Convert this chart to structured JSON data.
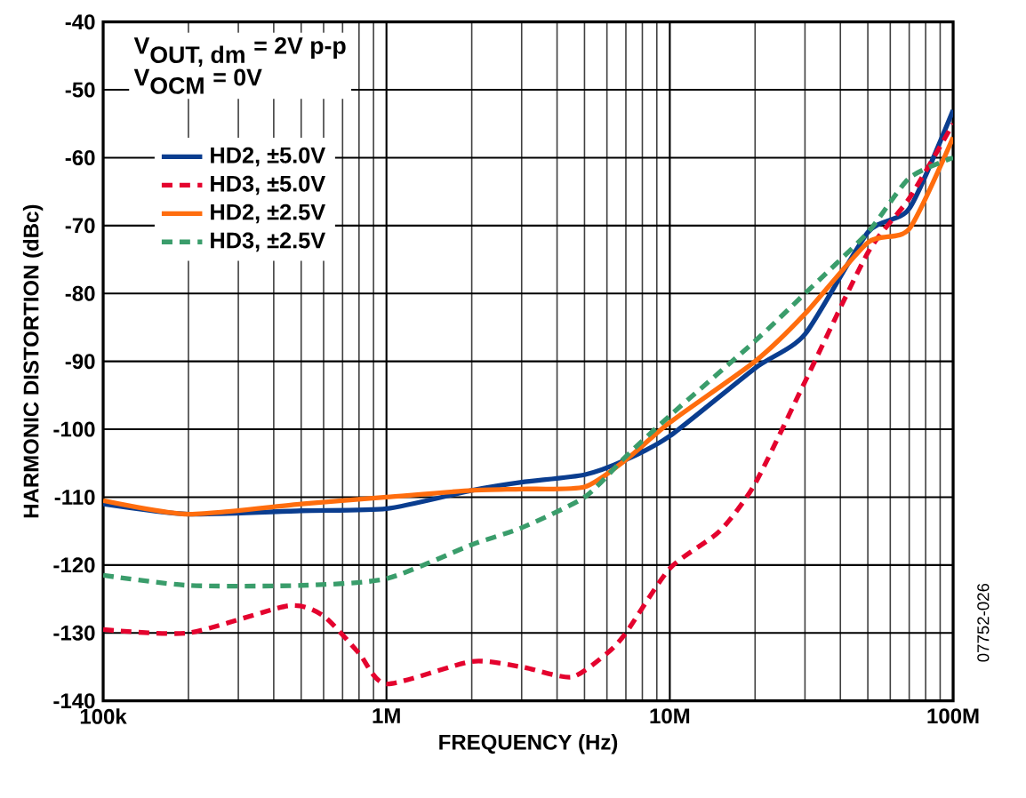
{
  "chart_data": {
    "type": "line",
    "xlabel": "FREQUENCY (Hz)",
    "ylabel": "HARMONIC DISTORTION (dBc)",
    "annotations": [
      "\\mbox{V}_{\\mbox{OUT, dm}}\\mbox{ = 2V p-p}",
      "\\mbox{V}_{\\mbox{OCM}}\\mbox{ = 0V}",
      "07752-026"
    ],
    "log": "x",
    "grid": true,
    "legend": "top left",
    "xlim": [
      100000,
      100000000
    ],
    "ylim": [
      -140,
      -40
    ],
    "xticks": [
      {
        "value": 100000,
        "label": "100k"
      },
      {
        "value": 1000000,
        "label": "1M"
      },
      {
        "value": 10000000,
        "label": "10M"
      },
      {
        "value": 100000000,
        "label": "100M"
      }
    ],
    "yticks": [
      -140,
      -130,
      -120,
      -110,
      -100,
      -90,
      -80,
      -70,
      -60,
      -50,
      -40
    ],
    "x": [
      100000,
      200000,
      500000,
      1000000,
      2000000,
      3000000,
      5000000,
      7000000,
      10000000,
      20000000,
      30000000,
      50000000,
      70000000,
      100000000
    ],
    "series": [
      {
        "name": "HD2, ±5.0V",
        "color": "#0a3d8f",
        "line_style": "solid",
        "values": [
          -111,
          -112.5,
          -112,
          -111.7,
          -109,
          -107.8,
          -106.7,
          -104.5,
          -101,
          -91,
          -86,
          -71,
          -67.5,
          -53
        ]
      },
      {
        "name": "HD3, ±5.0V",
        "color": "#e4032e",
        "line_style": "dashed",
        "x": [
          100000,
          200000,
          450000,
          600000,
          800000,
          1000000,
          2000000,
          3000000,
          4500000,
          6000000,
          7000000,
          10000000,
          15000000,
          20000000,
          30000000,
          50000000,
          70000000,
          100000000
        ],
        "values": [
          -129.5,
          -130,
          -126,
          -127.5,
          -133,
          -137.5,
          -134.2,
          -135,
          -136.5,
          -133,
          -130,
          -120.5,
          -115,
          -108,
          -93,
          -74,
          -66,
          -55
        ]
      },
      {
        "name": "HD2, ±2.5V",
        "color": "#ff6d0e",
        "line_style": "solid",
        "values": [
          -110.5,
          -112.5,
          -111,
          -110,
          -109,
          -108.8,
          -108.5,
          -104.5,
          -99,
          -90,
          -83,
          -72.5,
          -70.5,
          -57
        ]
      },
      {
        "name": "HD3, ±2.5V",
        "color": "#3a9d6b",
        "line_style": "dashed",
        "values": [
          -121.5,
          -123,
          -123,
          -122,
          -117,
          -114.5,
          -110,
          -104,
          -98,
          -87,
          -80,
          -71,
          -63,
          -60
        ]
      }
    ]
  }
}
